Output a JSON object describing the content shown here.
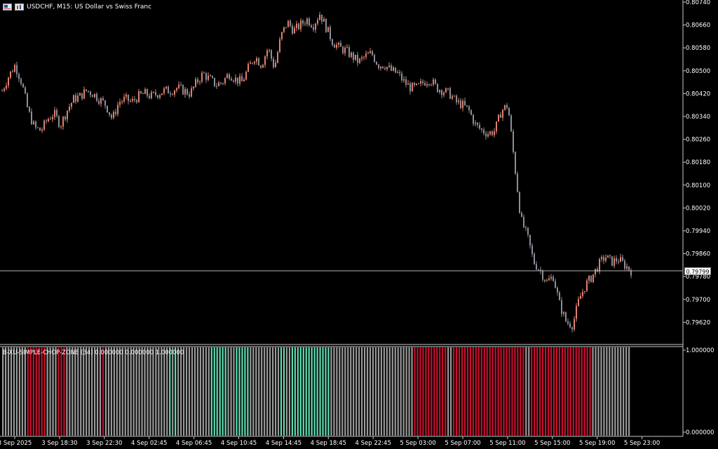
{
  "window": {
    "symbol_title": "USDCHF, M15:  US Dollar vs Swiss Franc"
  },
  "icons": [
    "flag-icon",
    "chart-type-icon"
  ],
  "colors": {
    "background": "#000000",
    "axis": "#c8c8c8",
    "bull_candle": "#e0806c",
    "bear_candle": "#8a8f98",
    "bid_line": "#b4b4b4",
    "chop_gray": "#9a9a9a",
    "chop_red": "#c8102e",
    "chop_teal": "#5fe0b5"
  },
  "price_axis": {
    "labels": [
      "0.80740",
      "0.80660",
      "0.80580",
      "0.80500",
      "0.80420",
      "0.80340",
      "0.80260",
      "0.80180",
      "0.80100",
      "0.80020",
      "0.79940",
      "0.79860",
      "0.79780",
      "0.79700",
      "0.79620"
    ],
    "current_price": "0.79799"
  },
  "indicator": {
    "label": "B-XU-SIMPLE-CHOP-ZONE (34) 0.000000 0.000000 1.000000",
    "axis_labels": [
      "1.000000",
      "0.000000"
    ]
  },
  "time_axis": {
    "labels": [
      "3 Sep 2025",
      "3 Sep 18:30",
      "3 Sep 22:30",
      "4 Sep 02:45",
      "4 Sep 06:45",
      "4 Sep 10:45",
      "4 Sep 14:45",
      "4 Sep 18:45",
      "4 Sep 22:45",
      "5 Sep 03:00",
      "5 Sep 07:00",
      "5 Sep 11:00",
      "5 Sep 15:00",
      "5 Sep 19:00",
      "5 Sep 23:00"
    ]
  },
  "chart_data": {
    "type": "candlestick",
    "symbol": "USDCHF",
    "timeframe": "M15",
    "ylim": [
      0.7958,
      0.8075
    ],
    "close_path": [
      0.8043,
      0.8048,
      0.8052,
      0.8046,
      0.8036,
      0.803,
      0.8029,
      0.8033,
      0.8035,
      0.8031,
      0.8036,
      0.804,
      0.8041,
      0.8043,
      0.8042,
      0.804,
      0.8038,
      0.8033,
      0.8039,
      0.804,
      0.8039,
      0.8041,
      0.8042,
      0.8041,
      0.8042,
      0.8043,
      0.8043,
      0.8044,
      0.8043,
      0.8042,
      0.8046,
      0.8049,
      0.8047,
      0.8045,
      0.8046,
      0.8049,
      0.8047,
      0.8046,
      0.8051,
      0.8055,
      0.8052,
      0.8058,
      0.8051,
      0.8062,
      0.8067,
      0.8064,
      0.8066,
      0.8068,
      0.8066,
      0.807,
      0.8065,
      0.806,
      0.8058,
      0.8057,
      0.8055,
      0.8053,
      0.8055,
      0.8056,
      0.8052,
      0.8052,
      0.805,
      0.8049,
      0.8046,
      0.8044,
      0.8044,
      0.8046,
      0.8047,
      0.8044,
      0.8043,
      0.8042,
      0.8039,
      0.8038,
      0.8036,
      0.8031,
      0.8029,
      0.8028,
      0.8029,
      0.8036,
      0.8038,
      0.8018,
      0.7998,
      0.7992,
      0.7983,
      0.798,
      0.7976,
      0.7978,
      0.7968,
      0.7962,
      0.7961,
      0.797,
      0.7975,
      0.7978,
      0.7982,
      0.7985,
      0.7983,
      0.7984,
      0.7982,
      0.798
    ],
    "chop_zone": {
      "range": [
        0,
        1
      ],
      "color_sequence": [
        "gray",
        "gray",
        "gray",
        "gray",
        "gray",
        "gray",
        "gray",
        "gray",
        "gray",
        "red",
        "red",
        "red",
        "red",
        "red",
        "red",
        "red",
        "gray",
        "gray",
        "gray",
        "gray",
        "red",
        "red",
        "red",
        "gray",
        "gray",
        "gray",
        "gray",
        "gray",
        "gray",
        "gray",
        "gray",
        "gray",
        "gray",
        "gray",
        "gray",
        "gray",
        "red",
        "gray",
        "gray",
        "gray",
        "gray",
        "gray",
        "gray",
        "gray",
        "gray",
        "gray",
        "gray",
        "gray",
        "gray",
        "gray",
        "gray",
        "gray",
        "gray",
        "gray",
        "gray",
        "gray",
        "gray",
        "gray",
        "gray",
        "gray",
        "teal",
        "gray",
        "teal",
        "gray",
        "gray",
        "gray",
        "gray",
        "gray",
        "gray",
        "gray",
        "gray",
        "gray",
        "gray",
        "gray",
        "gray",
        "teal",
        "teal",
        "teal",
        "teal",
        "teal",
        "teal",
        "gray",
        "gray",
        "gray",
        "teal",
        "teal",
        "teal",
        "teal",
        "teal",
        "gray",
        "gray",
        "gray",
        "gray",
        "gray",
        "gray",
        "gray",
        "gray",
        "gray",
        "gray",
        "gray",
        "teal",
        "teal",
        "gray",
        "gray",
        "teal",
        "teal",
        "teal",
        "teal",
        "teal",
        "teal",
        "teal",
        "teal",
        "teal",
        "teal",
        "teal",
        "teal",
        "teal",
        "teal",
        "gray",
        "gray",
        "gray",
        "gray",
        "gray",
        "gray",
        "gray",
        "gray",
        "gray",
        "gray",
        "gray",
        "gray",
        "gray",
        "gray",
        "gray",
        "gray",
        "gray",
        "gray",
        "gray",
        "gray",
        "gray",
        "gray",
        "gray",
        "gray",
        "gray",
        "gray",
        "gray",
        "gray",
        "gray",
        "gray",
        "red",
        "red",
        "red",
        "red",
        "red",
        "red",
        "red",
        "red",
        "red",
        "red",
        "red",
        "red",
        "gray",
        "gray",
        "red",
        "red",
        "red",
        "red",
        "red",
        "red",
        "red",
        "red",
        "red",
        "red",
        "red",
        "red",
        "red",
        "red",
        "red",
        "red",
        "red",
        "red",
        "red",
        "red",
        "red",
        "red",
        "red",
        "red",
        "red",
        "red",
        "gray",
        "gray",
        "red",
        "red",
        "red",
        "red",
        "red",
        "red",
        "red",
        "red",
        "red",
        "red",
        "red",
        "red",
        "red",
        "red",
        "red",
        "red",
        "red",
        "red",
        "red",
        "red",
        "red",
        "red",
        "gray",
        "gray",
        "gray",
        "gray",
        "gray",
        "gray",
        "gray",
        "gray",
        "gray",
        "gray",
        "gray",
        "gray",
        "gray",
        "gray"
      ]
    }
  }
}
